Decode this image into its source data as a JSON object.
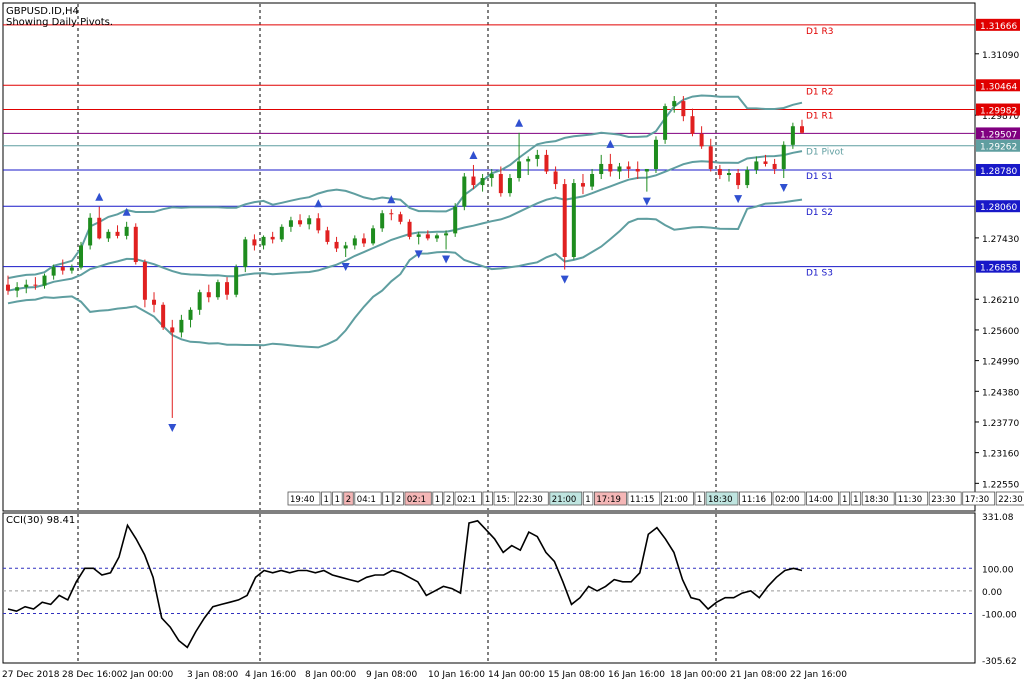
{
  "header": {
    "symbol_line": "GBPUSD.ID,H4",
    "subtitle": "Showing Daily Pivots."
  },
  "colors": {
    "bull": "#1e8c1e",
    "bear": "#e02020",
    "band": "#5f9ea0",
    "pivot_red": "#e00000",
    "pivot_blue": "#1818c8",
    "pivot_mid": "#5f9ea0",
    "current": "#800080",
    "cci": "#000000",
    "fractal": "#3050d0"
  },
  "chart_data": {
    "type": "candlestick",
    "timeframe": "H4",
    "price_axis": {
      "min": 1.22,
      "max": 1.321,
      "ticks": [
        "1.31090",
        "1.29870",
        "1.27430",
        "1.26210",
        "1.25600",
        "1.24990",
        "1.24380",
        "1.23770",
        "1.23160",
        "1.22550"
      ]
    },
    "current_price": 1.29507,
    "pivots": [
      {
        "name": "D1 R3",
        "value": 1.31666,
        "color": "pivot_red"
      },
      {
        "name": "D1 R2",
        "value": 1.30464,
        "color": "pivot_red"
      },
      {
        "name": "D1 R1",
        "value": 1.29982,
        "color": "pivot_red"
      },
      {
        "name": "D1 Pivot",
        "value": 1.29262,
        "color": "pivot_mid"
      },
      {
        "name": "D1 S1",
        "value": 1.2878,
        "color": "pivot_blue"
      },
      {
        "name": "D1 S2",
        "value": 1.2806,
        "color": "pivot_blue"
      },
      {
        "name": "D1 S3",
        "value": 1.26858,
        "color": "pivot_blue"
      }
    ],
    "price_labels": [
      "1.31666",
      "1.30464",
      "1.29982",
      "1.29507",
      "1.29262",
      "1.28780",
      "1.28060",
      "1.26858"
    ],
    "candles": [
      [
        1.265,
        1.2668,
        1.263,
        1.2638
      ],
      [
        1.2638,
        1.2655,
        1.2625,
        1.2645
      ],
      [
        1.2645,
        1.266,
        1.2633,
        1.265
      ],
      [
        1.265,
        1.2665,
        1.264,
        1.2648
      ],
      [
        1.2648,
        1.2672,
        1.2642,
        1.2668
      ],
      [
        1.2668,
        1.269,
        1.266,
        1.2685
      ],
      [
        1.2685,
        1.27,
        1.267,
        1.2678
      ],
      [
        1.2678,
        1.269,
        1.2672,
        1.2684
      ],
      [
        1.2684,
        1.2735,
        1.268,
        1.2728
      ],
      [
        1.2728,
        1.2792,
        1.272,
        1.2783
      ],
      [
        1.2783,
        1.2805,
        1.274,
        1.2742
      ],
      [
        1.2742,
        1.276,
        1.2735,
        1.2755
      ],
      [
        1.2755,
        1.2768,
        1.2742,
        1.2747
      ],
      [
        1.2747,
        1.2775,
        1.274,
        1.2765
      ],
      [
        1.2765,
        1.2772,
        1.269,
        1.2695
      ],
      [
        1.2695,
        1.27,
        1.2605,
        1.262
      ],
      [
        1.262,
        1.2635,
        1.2595,
        1.261
      ],
      [
        1.261,
        1.2615,
        1.256,
        1.2565
      ],
      [
        1.2565,
        1.258,
        1.2385,
        1.2555
      ],
      [
        1.2555,
        1.259,
        1.2545,
        1.258
      ],
      [
        1.258,
        1.2605,
        1.2565,
        1.26
      ],
      [
        1.26,
        1.264,
        1.259,
        1.2635
      ],
      [
        1.2635,
        1.265,
        1.2615,
        1.2625
      ],
      [
        1.2625,
        1.266,
        1.262,
        1.2655
      ],
      [
        1.2655,
        1.2665,
        1.262,
        1.263
      ],
      [
        1.263,
        1.269,
        1.2625,
        1.2685
      ],
      [
        1.2685,
        1.2745,
        1.2675,
        1.274
      ],
      [
        1.274,
        1.275,
        1.2718,
        1.2728
      ],
      [
        1.2728,
        1.2748,
        1.272,
        1.2745
      ],
      [
        1.2745,
        1.2755,
        1.2732,
        1.274
      ],
      [
        1.274,
        1.277,
        1.2735,
        1.2765
      ],
      [
        1.2765,
        1.2785,
        1.2755,
        1.2778
      ],
      [
        1.2778,
        1.279,
        1.2765,
        1.277
      ],
      [
        1.277,
        1.2788,
        1.276,
        1.2782
      ],
      [
        1.2782,
        1.2792,
        1.2752,
        1.2758
      ],
      [
        1.2758,
        1.2765,
        1.273,
        1.2735
      ],
      [
        1.2735,
        1.2745,
        1.2715,
        1.2722
      ],
      [
        1.2722,
        1.2735,
        1.2705,
        1.2728
      ],
      [
        1.2728,
        1.2748,
        1.272,
        1.2742
      ],
      [
        1.2742,
        1.2752,
        1.2725,
        1.2732
      ],
      [
        1.2732,
        1.2768,
        1.2728,
        1.2762
      ],
      [
        1.2762,
        1.2798,
        1.2755,
        1.2792
      ],
      [
        1.2792,
        1.28,
        1.2778,
        1.279
      ],
      [
        1.279,
        1.2795,
        1.277,
        1.2775
      ],
      [
        1.2775,
        1.278,
        1.274,
        1.2745
      ],
      [
        1.2745,
        1.2755,
        1.273,
        1.275
      ],
      [
        1.275,
        1.2758,
        1.2738,
        1.2742
      ],
      [
        1.2742,
        1.2752,
        1.2735,
        1.2748
      ],
      [
        1.2748,
        1.2758,
        1.272,
        1.2752
      ],
      [
        1.2752,
        1.2812,
        1.2745,
        1.2805
      ],
      [
        1.2805,
        1.2872,
        1.2798,
        1.2865
      ],
      [
        1.2865,
        1.2888,
        1.284,
        1.2848
      ],
      [
        1.2848,
        1.287,
        1.2835,
        1.2862
      ],
      [
        1.2862,
        1.288,
        1.2845,
        1.287
      ],
      [
        1.287,
        1.2885,
        1.2825,
        1.2832
      ],
      [
        1.2832,
        1.287,
        1.2825,
        1.2862
      ],
      [
        1.2862,
        1.2952,
        1.2855,
        1.2895
      ],
      [
        1.2895,
        1.2905,
        1.2868,
        1.29
      ],
      [
        1.29,
        1.2918,
        1.2885,
        1.2908
      ],
      [
        1.2908,
        1.2918,
        1.287,
        1.2875
      ],
      [
        1.2875,
        1.2885,
        1.284,
        1.285
      ],
      [
        1.285,
        1.286,
        1.268,
        1.2705
      ],
      [
        1.2705,
        1.286,
        1.27,
        1.2852
      ],
      [
        1.2852,
        1.287,
        1.283,
        1.2845
      ],
      [
        1.2845,
        1.288,
        1.2838,
        1.287
      ],
      [
        1.287,
        1.2908,
        1.286,
        1.289
      ],
      [
        1.289,
        1.291,
        1.2865,
        1.2875
      ],
      [
        1.2875,
        1.2892,
        1.286,
        1.2885
      ],
      [
        1.2885,
        1.2895,
        1.2862,
        1.288
      ],
      [
        1.288,
        1.2895,
        1.286,
        1.2875
      ],
      [
        1.2875,
        1.288,
        1.2835,
        1.288
      ],
      [
        1.288,
        1.2945,
        1.2872,
        1.2938
      ],
      [
        1.2938,
        1.301,
        1.293,
        1.3005
      ],
      [
        1.3005,
        1.3025,
        1.2992,
        1.3015
      ],
      [
        1.3015,
        1.3025,
        1.2975,
        1.2985
      ],
      [
        1.2985,
        1.3,
        1.2945,
        1.295
      ],
      [
        1.295,
        1.2965,
        1.292,
        1.2925
      ],
      [
        1.2925,
        1.294,
        1.2875,
        1.288
      ],
      [
        1.288,
        1.2888,
        1.286,
        1.2868
      ],
      [
        1.2868,
        1.288,
        1.2855,
        1.2872
      ],
      [
        1.2872,
        1.288,
        1.284,
        1.2848
      ],
      [
        1.2848,
        1.2885,
        1.2842,
        1.2878
      ],
      [
        1.2878,
        1.2905,
        1.287,
        1.2895
      ],
      [
        1.2895,
        1.2908,
        1.2885,
        1.289
      ],
      [
        1.289,
        1.29,
        1.287,
        1.288
      ],
      [
        1.288,
        1.2935,
        1.2862,
        1.2928
      ],
      [
        1.2928,
        1.2972,
        1.292,
        1.2965
      ],
      [
        1.2965,
        1.2978,
        1.295,
        1.2952
      ]
    ],
    "sessions_row": [
      "19:40",
      "1",
      "1",
      "2",
      "04:1",
      "1",
      "2",
      "02:1",
      "1",
      "2",
      "02:1",
      "1",
      "15:",
      "22:30",
      "21:00",
      "1",
      "17:19",
      "11:15",
      "21:00",
      "1",
      "18:30",
      "11:16",
      "02:00",
      "14:00",
      "1",
      "1",
      "18:30",
      "11:30",
      "23:30",
      "17:30",
      "22:30"
    ],
    "cci": {
      "name": "CCI(30)",
      "value": "98.41",
      "axis_ticks": [
        "331.08",
        "100.00",
        "0.00",
        "-100.00",
        "-305.62"
      ],
      "min": -305.62,
      "max": 331.08,
      "levels": [
        100,
        0,
        -100
      ],
      "values": [
        -80,
        -90,
        -70,
        -80,
        -50,
        -60,
        -20,
        -40,
        40,
        100,
        100,
        70,
        80,
        150,
        290,
        230,
        160,
        60,
        -120,
        -160,
        -220,
        -250,
        -180,
        -120,
        -70,
        -60,
        -50,
        -40,
        -20,
        60,
        90,
        80,
        90,
        80,
        90,
        90,
        80,
        90,
        70,
        60,
        50,
        40,
        60,
        70,
        70,
        90,
        80,
        60,
        40,
        -20,
        0,
        20,
        10,
        -10,
        300,
        310,
        270,
        230,
        170,
        200,
        180,
        260,
        240,
        170,
        130,
        40,
        -60,
        -30,
        20,
        0,
        20,
        50,
        40,
        40,
        80,
        250,
        280,
        230,
        170,
        50,
        -30,
        -40,
        -80,
        -50,
        -30,
        -30,
        -10,
        0,
        -30,
        20,
        60,
        90,
        100,
        90
      ]
    },
    "x_labels": [
      "27 Dec 2018",
      "28 Dec 16:00",
      "2 Jan 00:00",
      "3 Jan 08:00",
      "4 Jan 16:00",
      "8 Jan 00:00",
      "9 Jan 08:00",
      "10 Jan 16:00",
      "14 Jan 00:00",
      "15 Jan 08:00",
      "16 Jan 16:00",
      "18 Jan 00:00",
      "21 Jan 08:00",
      "22 Jan 16:00"
    ]
  }
}
